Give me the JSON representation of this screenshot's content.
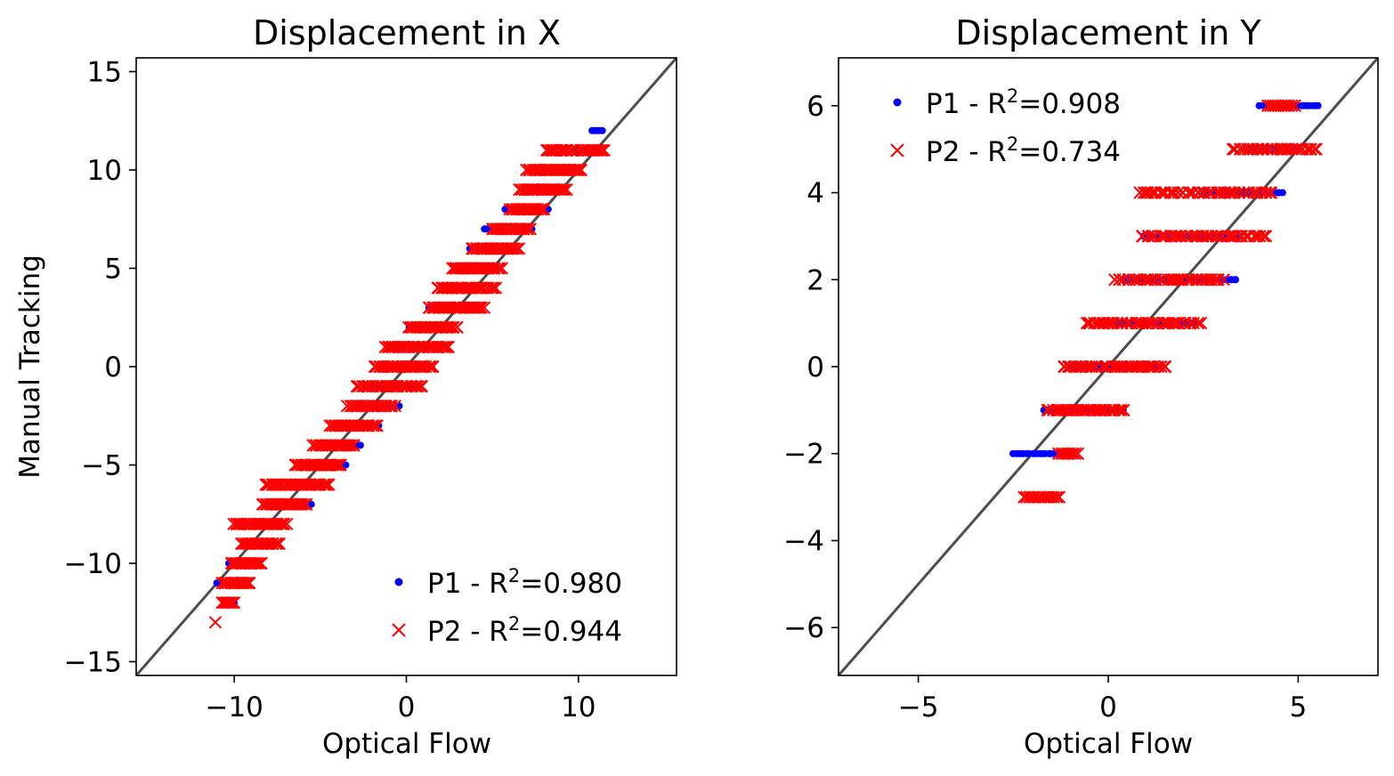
{
  "chart_data": [
    {
      "type": "scatter",
      "title": "Displacement in X",
      "xlabel": "Optical Flow",
      "ylabel": "Manual Tracking",
      "xlim": [
        -15.7,
        15.7
      ],
      "ylim": [
        -15.7,
        15.7
      ],
      "xticks": [
        -10,
        0,
        10
      ],
      "yticks": [
        -15,
        -10,
        -5,
        0,
        5,
        10,
        15
      ],
      "grid": false,
      "legend_position": "lower-right",
      "identity_line": {
        "color": "#4d4d4d",
        "from": [
          -15.7,
          -15.7
        ],
        "to": [
          15.7,
          15.7
        ]
      },
      "series": [
        {
          "name": "P1 - R²=0.980",
          "marker": "dot",
          "color": "#0000ff",
          "clusters": [
            {
              "y": -12,
              "x": [
                -10.5,
                -10.0
              ]
            },
            {
              "y": -11,
              "x": [
                -11.0,
                -9.5
              ]
            },
            {
              "y": -10,
              "x": [
                -10.3,
                -8.8
              ]
            },
            {
              "y": -9,
              "x": [
                -9.0,
                -7.6
              ]
            },
            {
              "y": -8,
              "x": [
                -8.8,
                -7.4
              ]
            },
            {
              "y": -7,
              "x": [
                -7.7,
                -5.5
              ]
            },
            {
              "y": -6,
              "x": [
                -6.7,
                -4.8
              ]
            },
            {
              "y": -5,
              "x": [
                -5.8,
                -3.5
              ]
            },
            {
              "y": -4,
              "x": [
                -4.9,
                -2.7
              ]
            },
            {
              "y": -3,
              "x": [
                -3.6,
                -1.6
              ]
            },
            {
              "y": -2,
              "x": [
                -2.8,
                -0.4
              ]
            },
            {
              "y": -1,
              "x": [
                -2.0,
                0.5
              ]
            },
            {
              "y": 0,
              "x": [
                -1.3,
                1.5
              ]
            },
            {
              "y": 1,
              "x": [
                -0.8,
                2.3
              ]
            },
            {
              "y": 2,
              "x": [
                0.2,
                2.6
              ]
            },
            {
              "y": 3,
              "x": [
                1.3,
                3.7
              ]
            },
            {
              "y": 4,
              "x": [
                2.0,
                4.3
              ]
            },
            {
              "y": 5,
              "x": [
                3.0,
                5.2
              ]
            },
            {
              "y": 6,
              "x": [
                3.7,
                6.0
              ]
            },
            {
              "y": 7,
              "x": [
                4.5,
                7.3
              ]
            },
            {
              "y": 8,
              "x": [
                5.7,
                8.2
              ]
            },
            {
              "y": 9,
              "x": [
                6.8,
                9.0
              ]
            },
            {
              "y": 10,
              "x": [
                8.0,
                9.8
              ]
            },
            {
              "y": 11,
              "x": [
                9.8,
                10.3
              ]
            },
            {
              "y": 12,
              "x": [
                10.8,
                11.4
              ]
            }
          ]
        },
        {
          "name": "P2 - R²=0.944",
          "marker": "x",
          "color": "#ff0000",
          "clusters": [
            {
              "y": -13,
              "x": [
                -11.1,
                -11.1
              ]
            },
            {
              "y": -12,
              "x": [
                -10.7,
                -10.0
              ]
            },
            {
              "y": -11,
              "x": [
                -10.7,
                -9.1
              ]
            },
            {
              "y": -10,
              "x": [
                -10.2,
                -8.4
              ]
            },
            {
              "y": -9,
              "x": [
                -9.6,
                -7.4
              ]
            },
            {
              "y": -8,
              "x": [
                -10.0,
                -7.0
              ]
            },
            {
              "y": -7,
              "x": [
                -8.4,
                -5.8
              ]
            },
            {
              "y": -6,
              "x": [
                -8.2,
                -4.5
              ]
            },
            {
              "y": -5,
              "x": [
                -6.5,
                -3.8
              ]
            },
            {
              "y": -4,
              "x": [
                -5.4,
                -3.0
              ]
            },
            {
              "y": -3,
              "x": [
                -4.4,
                -1.7
              ]
            },
            {
              "y": -2,
              "x": [
                -3.4,
                -0.7
              ]
            },
            {
              "y": -1,
              "x": [
                -2.9,
                0.9
              ]
            },
            {
              "y": 0,
              "x": [
                -1.8,
                1.6
              ]
            },
            {
              "y": 1,
              "x": [
                -1.2,
                2.5
              ]
            },
            {
              "y": 2,
              "x": [
                0.1,
                3.0
              ]
            },
            {
              "y": 3,
              "x": [
                1.3,
                4.5
              ]
            },
            {
              "y": 4,
              "x": [
                1.8,
                5.2
              ]
            },
            {
              "y": 5,
              "x": [
                2.7,
                5.5
              ]
            },
            {
              "y": 6,
              "x": [
                3.8,
                6.5
              ]
            },
            {
              "y": 7,
              "x": [
                5.0,
                7.2
              ]
            },
            {
              "y": 8,
              "x": [
                6.0,
                8.0
              ]
            },
            {
              "y": 9,
              "x": [
                6.6,
                9.3
              ]
            },
            {
              "y": 10,
              "x": [
                7.0,
                10.2
              ]
            },
            {
              "y": 11,
              "x": [
                8.2,
                11.5
              ]
            }
          ]
        }
      ]
    },
    {
      "type": "scatter",
      "title": "Displacement in Y",
      "xlabel": "Optical Flow",
      "ylabel": "",
      "xlim": [
        -7.1,
        7.1
      ],
      "ylim": [
        -7.1,
        7.1
      ],
      "xticks": [
        -5,
        0,
        5
      ],
      "yticks": [
        -6,
        -4,
        -2,
        0,
        2,
        4,
        6
      ],
      "grid": false,
      "legend_position": "upper-left",
      "identity_line": {
        "color": "#4d4d4d",
        "from": [
          -7.1,
          -7.1
        ],
        "to": [
          7.1,
          7.1
        ]
      },
      "series": [
        {
          "name": "P1 - R²=0.908",
          "marker": "dot",
          "color": "#0000ff",
          "clusters": [
            {
              "y": -2,
              "x": [
                -2.5,
                -1.0
              ]
            },
            {
              "y": -1,
              "x": [
                -1.7,
                0.4
              ]
            },
            {
              "y": 0,
              "x": [
                -1.0,
                1.3
              ]
            },
            {
              "y": 1,
              "x": [
                -0.3,
                2.2
              ]
            },
            {
              "y": 2,
              "x": [
                0.4,
                3.4
              ]
            },
            {
              "y": 3,
              "x": [
                0.9,
                3.5
              ]
            },
            {
              "y": 4,
              "x": [
                2.5,
                4.6
              ]
            },
            {
              "y": 5,
              "x": [
                3.6,
                5.0
              ]
            },
            {
              "y": 6,
              "x": [
                4.0,
                5.5
              ]
            }
          ]
        },
        {
          "name": "P2 - R²=0.734",
          "marker": "x",
          "color": "#ff0000",
          "clusters": [
            {
              "y": -3,
              "x": [
                -2.2,
                -1.3
              ]
            },
            {
              "y": -2,
              "x": [
                -1.3,
                -0.8
              ]
            },
            {
              "y": -1,
              "x": [
                -1.6,
                0.4
              ]
            },
            {
              "y": 0,
              "x": [
                -1.2,
                1.5
              ]
            },
            {
              "y": 1,
              "x": [
                -0.6,
                2.4
              ]
            },
            {
              "y": 2,
              "x": [
                0.2,
                3.0
              ]
            },
            {
              "y": 3,
              "x": [
                0.9,
                4.1
              ]
            },
            {
              "y": 4,
              "x": [
                0.8,
                4.3
              ]
            },
            {
              "y": 5,
              "x": [
                3.3,
                5.5
              ]
            },
            {
              "y": 6,
              "x": [
                4.2,
                4.9
              ]
            }
          ]
        }
      ]
    }
  ]
}
